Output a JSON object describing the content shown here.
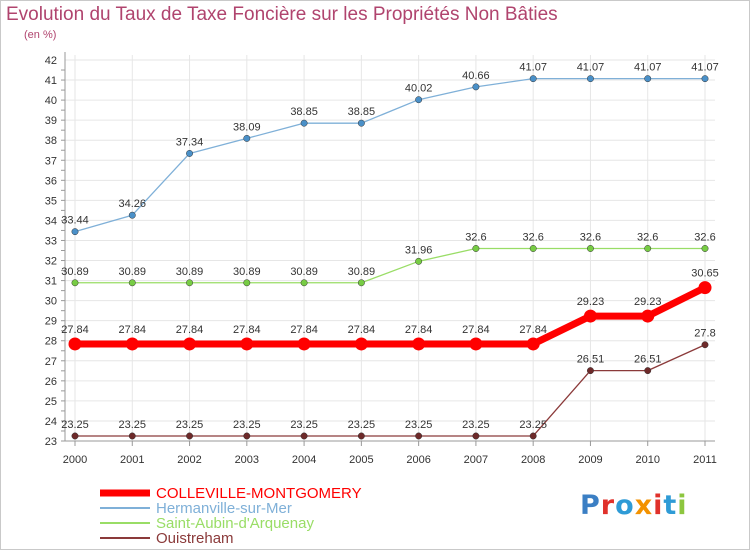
{
  "header": {
    "title": "Evolution du Taux de Taxe Foncière sur les Propriétés Non Bâties",
    "subtitle": "(en %)"
  },
  "logo": {
    "text": "Proxiti",
    "letter_colors": [
      "#3b7fc4",
      "#e0312b",
      "#2f9bd6",
      "#f39200",
      "#e0312b",
      "#2f9bd6",
      "#8dc63f"
    ]
  },
  "colors": {
    "grid": "#e6e6e6",
    "axis": "#999999",
    "title": "#b0446e"
  },
  "chart_data": {
    "type": "line",
    "title": "Evolution du Taux de Taxe Foncière sur les Propriétés Non Bâties",
    "ylabel": "(en %)",
    "xlabel": "",
    "x": [
      "2000",
      "2001",
      "2002",
      "2003",
      "2004",
      "2005",
      "2006",
      "2007",
      "2008",
      "2009",
      "2010",
      "2011"
    ],
    "ylim": [
      23,
      42
    ],
    "yticks": [
      "23",
      "24",
      "25",
      "26",
      "27",
      "28",
      "29",
      "30",
      "31",
      "32",
      "33",
      "34",
      "35",
      "36",
      "37",
      "38",
      "39",
      "40",
      "41",
      "42"
    ],
    "grid": true,
    "legend_position": "bottom-left",
    "series": [
      {
        "name": "COLLEVILLE-MONTGOMERY",
        "values": [
          27.84,
          27.84,
          27.84,
          27.84,
          27.84,
          27.84,
          27.84,
          27.84,
          27.84,
          29.23,
          29.23,
          30.65
        ],
        "labels": [
          "27.84",
          "27.84",
          "27.84",
          "27.84",
          "27.84",
          "27.84",
          "27.84",
          "27.84",
          "27.84",
          "29.23",
          "29.23",
          "30.65"
        ],
        "color": "#ff0000",
        "marker_color": "#ff0000",
        "highlight": true
      },
      {
        "name": "Hermanville-sur-Mer",
        "values": [
          33.44,
          34.26,
          37.34,
          38.09,
          38.85,
          38.85,
          40.02,
          40.66,
          41.07,
          41.07,
          41.07,
          41.07
        ],
        "labels": [
          "33.44",
          "34.26",
          "37.34",
          "38.09",
          "38.85",
          "38.85",
          "40.02",
          "40.66",
          "41.07",
          "41.07",
          "41.07",
          "41.07"
        ],
        "color": "#7fb0d8",
        "marker_color": "#4a90c8",
        "highlight": false
      },
      {
        "name": "Saint-Aubin-d'Arquenay",
        "values": [
          30.89,
          30.89,
          30.89,
          30.89,
          30.89,
          30.89,
          31.96,
          32.6,
          32.6,
          32.6,
          32.6,
          32.6
        ],
        "labels": [
          "30.89",
          "30.89",
          "30.89",
          "30.89",
          "30.89",
          "30.89",
          "31.96",
          "32.6",
          "32.6",
          "32.6",
          "32.6",
          "32.6"
        ],
        "color": "#99dd66",
        "marker_color": "#77cc44",
        "highlight": false
      },
      {
        "name": "Ouistreham",
        "values": [
          23.25,
          23.25,
          23.25,
          23.25,
          23.25,
          23.25,
          23.25,
          23.25,
          23.25,
          26.51,
          26.51,
          27.8
        ],
        "labels": [
          "23.25",
          "23.25",
          "23.25",
          "23.25",
          "23.25",
          "23.25",
          "23.25",
          "23.25",
          "23.25",
          "26.51",
          "26.51",
          "27.8"
        ],
        "color": "#8b3a3a",
        "marker_color": "#6e2a2a",
        "highlight": false
      }
    ]
  }
}
